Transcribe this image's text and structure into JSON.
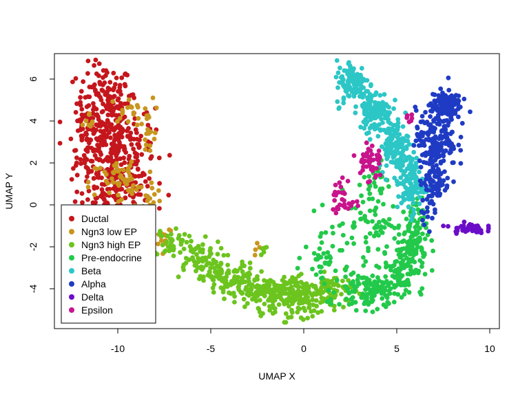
{
  "chart_data": {
    "type": "scatter",
    "title": "",
    "xlabel": "UMAP X",
    "ylabel": "UMAP Y",
    "xlim": [
      -13.5,
      10.5
    ],
    "ylim": [
      -5.9,
      7.1
    ],
    "x_ticks": [
      -10,
      -5,
      0,
      5,
      10
    ],
    "y_ticks": [
      -4,
      -2,
      0,
      2,
      4,
      6
    ],
    "x_tick_labels": [
      "-10",
      "-5",
      "0",
      "5",
      "10"
    ],
    "y_tick_labels": [
      "-4",
      "-2",
      "0",
      "2",
      "4",
      "6"
    ],
    "grid": false,
    "legend_position": "bottom-left",
    "series": [
      {
        "name": "Ductal",
        "color": "#C4161C",
        "clusters": [
          {
            "cx": -10.8,
            "cy": 4.8,
            "sx": 0.75,
            "sy": 0.9,
            "n": 130
          },
          {
            "cx": -10.2,
            "cy": 2.6,
            "sx": 1.05,
            "sy": 1.1,
            "n": 260
          },
          {
            "cx": -10.0,
            "cy": 0.6,
            "sx": 0.9,
            "sy": 0.55,
            "n": 110
          },
          {
            "cx": -11.8,
            "cy": 3.0,
            "sx": 0.35,
            "sy": 0.8,
            "n": 50
          }
        ]
      },
      {
        "name": "Ngn3 low EP",
        "color": "#C8961E",
        "clusters": [
          {
            "cx": -9.4,
            "cy": 4.4,
            "sx": 0.6,
            "sy": 0.3,
            "n": 22
          },
          {
            "cx": -8.5,
            "cy": 3.2,
            "sx": 0.3,
            "sy": 0.6,
            "n": 14
          },
          {
            "cx": -9.8,
            "cy": 1.0,
            "sx": 0.9,
            "sy": 0.6,
            "n": 60
          },
          {
            "cx": -8.3,
            "cy": 0.2,
            "sx": 0.3,
            "sy": 0.2,
            "n": 8
          },
          {
            "cx": -7.6,
            "cy": -1.5,
            "sx": 0.25,
            "sy": 0.3,
            "n": 14
          },
          {
            "cx": -2.5,
            "cy": -2.1,
            "sx": 0.15,
            "sy": 0.2,
            "n": 4
          },
          {
            "cx": -11.6,
            "cy": 3.7,
            "sx": 0.2,
            "sy": 0.3,
            "n": 8
          }
        ]
      },
      {
        "name": "Ngn3 high EP",
        "color": "#6CC41E",
        "clusters": [
          {
            "cx": -7.2,
            "cy": -1.8,
            "sx": 0.45,
            "sy": 0.35,
            "n": 40
          },
          {
            "cx": -5.8,
            "cy": -2.6,
            "sx": 0.7,
            "sy": 0.45,
            "n": 70
          },
          {
            "cx": -4.0,
            "cy": -3.6,
            "sx": 0.75,
            "sy": 0.4,
            "n": 110
          },
          {
            "cx": -2.0,
            "cy": -4.2,
            "sx": 0.8,
            "sy": 0.35,
            "n": 140
          },
          {
            "cx": 0.0,
            "cy": -4.4,
            "sx": 0.8,
            "sy": 0.45,
            "n": 150
          },
          {
            "cx": 1.6,
            "cy": -4.0,
            "sx": 0.5,
            "sy": 0.35,
            "n": 40
          },
          {
            "cx": -2.2,
            "cy": -2.2,
            "sx": 0.12,
            "sy": 0.15,
            "n": 6
          }
        ]
      },
      {
        "name": "Pre-endocrine",
        "color": "#22C94A",
        "clusters": [
          {
            "cx": 1.2,
            "cy": -2.5,
            "sx": 0.6,
            "sy": 0.9,
            "n": 45
          },
          {
            "cx": 3.6,
            "cy": -4.1,
            "sx": 0.9,
            "sy": 0.45,
            "n": 140
          },
          {
            "cx": 5.3,
            "cy": -3.0,
            "sx": 0.55,
            "sy": 0.55,
            "n": 90
          },
          {
            "cx": 5.8,
            "cy": -1.4,
            "sx": 0.4,
            "sy": 0.8,
            "n": 100
          },
          {
            "cx": 3.5,
            "cy": -0.8,
            "sx": 0.6,
            "sy": 0.8,
            "n": 60
          },
          {
            "cx": 4.0,
            "cy": 1.0,
            "sx": 0.3,
            "sy": 0.5,
            "n": 22
          }
        ]
      },
      {
        "name": "Beta",
        "color": "#2CC6C6",
        "clusters": [
          {
            "cx": 2.6,
            "cy": 5.7,
            "sx": 0.45,
            "sy": 0.55,
            "n": 110
          },
          {
            "cx": 3.8,
            "cy": 4.4,
            "sx": 0.45,
            "sy": 0.5,
            "n": 120
          },
          {
            "cx": 4.8,
            "cy": 2.8,
            "sx": 0.4,
            "sy": 0.55,
            "n": 110
          },
          {
            "cx": 5.7,
            "cy": 1.0,
            "sx": 0.35,
            "sy": 0.7,
            "n": 120
          }
        ]
      },
      {
        "name": "Alpha",
        "color": "#1F3BC4",
        "clusters": [
          {
            "cx": 7.6,
            "cy": 4.7,
            "sx": 0.4,
            "sy": 0.35,
            "n": 140
          },
          {
            "cx": 7.1,
            "cy": 3.1,
            "sx": 0.55,
            "sy": 0.7,
            "n": 160
          },
          {
            "cx": 7.0,
            "cy": 1.2,
            "sx": 0.4,
            "sy": 0.6,
            "n": 80
          },
          {
            "cx": 6.6,
            "cy": -0.4,
            "sx": 0.2,
            "sy": 0.3,
            "n": 14
          }
        ]
      },
      {
        "name": "Delta",
        "color": "#6A0DC8",
        "clusters": [
          {
            "cx": 8.8,
            "cy": -1.15,
            "sx": 0.45,
            "sy": 0.12,
            "n": 45
          }
        ]
      },
      {
        "name": "Epsilon",
        "color": "#C8148C",
        "clusters": [
          {
            "cx": 3.5,
            "cy": 2.0,
            "sx": 0.35,
            "sy": 0.5,
            "n": 45
          },
          {
            "cx": 2.1,
            "cy": 0.2,
            "sx": 0.3,
            "sy": 0.5,
            "n": 30
          },
          {
            "cx": 5.6,
            "cy": 4.0,
            "sx": 0.2,
            "sy": 0.2,
            "n": 6
          }
        ]
      }
    ]
  }
}
